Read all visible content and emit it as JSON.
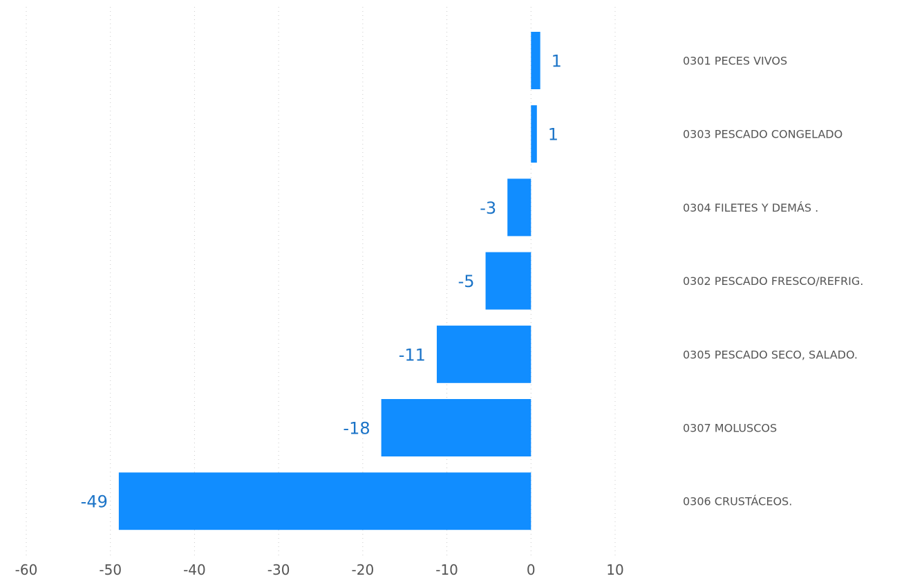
{
  "chart_data": {
    "type": "bar",
    "orientation": "horizontal",
    "title": "",
    "xlabel": "",
    "ylabel": "",
    "categories": [
      "0301 PECES VIVOS",
      "0303 PESCADO CONGELADO",
      "0304 FILETES Y DEMÁS .",
      "0302 PESCADO FRESCO/REFRIG.",
      "0305 PESCADO SECO, SALADO.",
      "0307 MOLUSCOS",
      "0306 CRUSTÁCEOS."
    ],
    "values": [
      1.1,
      0.7,
      -2.8,
      -5.4,
      -11.2,
      -17.8,
      -49.0
    ],
    "data_labels": [
      "1",
      "1",
      "-3",
      "-5",
      "-11",
      "-18",
      "-49"
    ],
    "xlim": [
      -60,
      10
    ],
    "x_ticks": [
      -60,
      -50,
      -40,
      -30,
      -20,
      -10,
      0,
      10
    ],
    "x_tick_labels": [
      "-60",
      "-50",
      "-40",
      "-30",
      "-20",
      "-10",
      "0",
      "10"
    ],
    "grid": true,
    "category_axis_position": "right",
    "bar_color": "#118dff",
    "label_color": "#1a73c7"
  }
}
